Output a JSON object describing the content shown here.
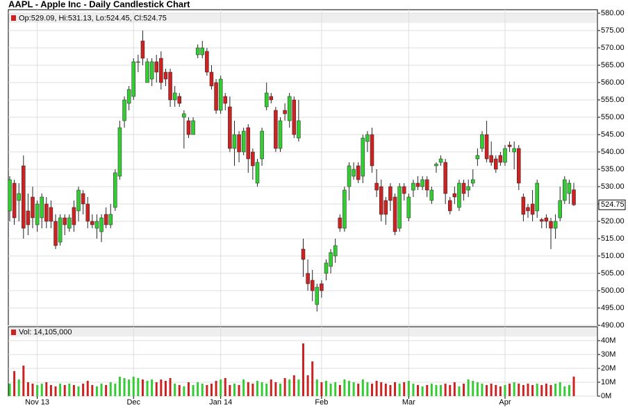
{
  "chart_data": {
    "type": "candlestick",
    "title": "AAPL - Apple Inc - Daily Candlestick Chart",
    "legend": "Op:529.09, Hi:531.13, Lo:524.45, Cl:524.75",
    "volume_legend": "Vol: 14,105,000",
    "up_color": "#33cc33",
    "down_color": "#cc2222",
    "grid": true,
    "categories": [
      null,
      null,
      null,
      null,
      null,
      null,
      "Nov 13",
      null,
      null,
      null,
      null,
      null,
      null,
      null,
      null,
      null,
      null,
      null,
      null,
      null,
      null,
      null,
      null,
      null,
      null,
      null,
      null,
      "Dec",
      null,
      null,
      null,
      null,
      null,
      null,
      null,
      null,
      null,
      null,
      null,
      null,
      null,
      null,
      null,
      null,
      null,
      null,
      "Jan 14",
      null,
      null,
      null,
      null,
      null,
      null,
      null,
      null,
      null,
      null,
      null,
      null,
      null,
      null,
      null,
      null,
      null,
      null,
      null,
      null,
      null,
      "Feb",
      null,
      null,
      null,
      null,
      null,
      null,
      null,
      null,
      null,
      null,
      null,
      null,
      null,
      null,
      null,
      null,
      null,
      null,
      "Mar",
      null,
      null,
      null,
      null,
      null,
      null,
      null,
      null,
      null,
      null,
      null,
      null,
      null,
      null,
      null,
      null,
      null,
      null,
      null,
      null,
      "Apr",
      null,
      null,
      null,
      null,
      null,
      null,
      null,
      null,
      null,
      null,
      null,
      null,
      null,
      null,
      null
    ],
    "open": [
      523,
      531,
      526,
      536,
      523,
      527,
      519,
      521,
      525,
      524,
      520,
      514,
      521,
      518,
      524,
      523,
      528,
      525,
      520,
      518,
      517,
      522,
      519,
      524,
      533,
      549,
      554,
      556,
      566,
      572,
      560,
      561,
      566,
      567,
      563,
      563,
      555,
      556,
      550,
      549,
      545,
      568,
      568,
      569,
      563,
      560,
      552,
      556,
      553,
      541,
      545,
      540,
      547,
      540,
      531,
      538,
      553,
      556,
      552,
      541,
      552,
      549,
      555,
      544,
      512,
      505,
      503,
      496,
      502,
      505,
      507,
      510,
      521,
      518,
      530,
      533,
      536,
      533,
      543,
      545,
      531,
      530,
      526,
      530,
      527,
      518,
      530,
      521,
      529,
      531,
      530,
      532,
      526,
      536,
      537,
      537,
      526,
      528,
      524,
      531,
      529,
      531,
      538,
      541,
      545,
      539,
      538,
      539,
      537,
      542,
      540,
      541,
      527,
      524,
      525,
      523,
      520.5,
      521,
      520,
      518,
      521,
      526,
      528,
      529.09
    ],
    "high": [
      533,
      532,
      531,
      539,
      528,
      530,
      526,
      528,
      527,
      526,
      522,
      522,
      522,
      522,
      526,
      530,
      529,
      527,
      522,
      522,
      522,
      524,
      525,
      535,
      549,
      556,
      559,
      567,
      568,
      575,
      567,
      567,
      568,
      569,
      564,
      564,
      559,
      557,
      552,
      550,
      550,
      571,
      572,
      570,
      565,
      561,
      562,
      557,
      556,
      549,
      546,
      547,
      548,
      541,
      538,
      547,
      560,
      557,
      553,
      550,
      554,
      557,
      556,
      555,
      515,
      509,
      506,
      502,
      503,
      509,
      512,
      515,
      522,
      530,
      537,
      537,
      537,
      545,
      546,
      547,
      535,
      532,
      527,
      531,
      528,
      531,
      531,
      528,
      532,
      533,
      533,
      533,
      530,
      537,
      539,
      538,
      527,
      530,
      532,
      532,
      532,
      535,
      541,
      546,
      549,
      543,
      539,
      540,
      542,
      543,
      543,
      542,
      528,
      525,
      529,
      532,
      521,
      522,
      521,
      522,
      530,
      533,
      532,
      531.13
    ],
    "low": [
      520,
      519,
      520,
      515,
      516,
      518,
      517,
      518,
      518,
      518,
      512,
      513,
      516,
      517,
      517,
      520,
      522,
      518,
      518,
      515,
      514,
      518,
      518,
      523,
      532,
      547,
      552,
      555,
      563,
      565,
      560,
      559,
      560,
      558,
      559,
      553,
      553,
      553,
      541,
      544,
      545,
      567,
      567,
      562,
      558,
      551,
      551,
      552,
      540,
      536,
      537,
      539,
      534,
      532,
      530,
      536,
      552,
      554,
      540,
      540,
      549,
      547,
      544,
      543,
      504,
      500,
      497,
      494,
      498,
      503,
      505,
      508,
      517,
      517,
      526,
      532,
      531,
      531,
      540,
      534,
      527,
      520,
      519,
      523,
      516,
      517,
      526,
      520,
      527,
      529,
      529,
      527,
      525,
      534,
      536,
      525,
      522,
      525,
      523,
      526,
      527,
      530,
      536,
      540,
      537,
      536,
      534,
      536,
      536,
      540,
      535,
      529,
      520,
      521,
      520,
      521,
      518,
      518,
      512,
      515,
      520,
      525,
      525,
      524.45
    ],
    "close": [
      532,
      521,
      528,
      518,
      519,
      521,
      525,
      527,
      520,
      520,
      513,
      521,
      519,
      521,
      519,
      529,
      525,
      520,
      519,
      520,
      521,
      519,
      522,
      534,
      547,
      555,
      558,
      566,
      566,
      567,
      566,
      566,
      563,
      560,
      561,
      555,
      557,
      554,
      551,
      545,
      549,
      570,
      570,
      563,
      559,
      552,
      561,
      554,
      541,
      545,
      540,
      546,
      538,
      536,
      537,
      546,
      557,
      555,
      541,
      549,
      551,
      556,
      545,
      549,
      509,
      502,
      500,
      501,
      500,
      508,
      511,
      513,
      518,
      529,
      536,
      535,
      532,
      544,
      545,
      536,
      529,
      522,
      522,
      526,
      517,
      530,
      528,
      527,
      531,
      530,
      532,
      529,
      529,
      536.5,
      538,
      528,
      523,
      527,
      531,
      528,
      530,
      532,
      539,
      545,
      538,
      537,
      535,
      537,
      541,
      541.5,
      541,
      531,
      522,
      523,
      522,
      531,
      520,
      520,
      518,
      520,
      526,
      532,
      531,
      524.75
    ],
    "volume": [
      9,
      18,
      12,
      22,
      10,
      9,
      8,
      9,
      10,
      8,
      7,
      9,
      8,
      9,
      8,
      7,
      9,
      11,
      8,
      7,
      9,
      8,
      10,
      9,
      14,
      13,
      12,
      14,
      13,
      12,
      11,
      12,
      10,
      12,
      11,
      13,
      9,
      8,
      7,
      10,
      8,
      10,
      9,
      8,
      9,
      11,
      12,
      13,
      8,
      9,
      8,
      12,
      10,
      9,
      11,
      10,
      9,
      12,
      10,
      9,
      13,
      12,
      15,
      12,
      38,
      15,
      25,
      12,
      10,
      11,
      9,
      10,
      8,
      12,
      11,
      10,
      9,
      12,
      10,
      9,
      11,
      10,
      9,
      8,
      10,
      9,
      10,
      11,
      9,
      8,
      7,
      8,
      9,
      8,
      8,
      9,
      8,
      10,
      7,
      9,
      12,
      11,
      10,
      9,
      8,
      9,
      8,
      7,
      8,
      9,
      10,
      9,
      8,
      9,
      8,
      9,
      8,
      9,
      8,
      9,
      10,
      7,
      8,
      14.105
    ],
    "ylim": [
      490,
      581
    ],
    "yticks": [
      {
        "value": 490,
        "label": "490.00"
      },
      {
        "value": 495,
        "label": "495.00"
      },
      {
        "value": 500,
        "label": "500.00"
      },
      {
        "value": 505,
        "label": "505.00"
      },
      {
        "value": 510,
        "label": "510.00"
      },
      {
        "value": 515,
        "label": "515.00"
      },
      {
        "value": 520,
        "label": "520.00"
      },
      {
        "value": 525,
        "label": "525.00"
      },
      {
        "value": 530,
        "label": "530.00"
      },
      {
        "value": 535,
        "label": "535.00"
      },
      {
        "value": 540,
        "label": "540.00"
      },
      {
        "value": 545,
        "label": "545.00"
      },
      {
        "value": 550,
        "label": "550.00"
      },
      {
        "value": 555,
        "label": "555.00"
      },
      {
        "value": 560,
        "label": "560.00"
      },
      {
        "value": 565,
        "label": "565.00"
      },
      {
        "value": 570,
        "label": "570.00"
      },
      {
        "value": 575,
        "label": "575.00"
      },
      {
        "value": 580,
        "label": "580.00"
      }
    ],
    "vol_ylim": [
      0,
      50
    ],
    "vol_yticks": [
      {
        "value": 0,
        "label": "0M"
      },
      {
        "value": 10,
        "label": "10M"
      },
      {
        "value": 20,
        "label": "20M"
      },
      {
        "value": 30,
        "label": "30M"
      },
      {
        "value": 40,
        "label": "40M"
      }
    ]
  }
}
